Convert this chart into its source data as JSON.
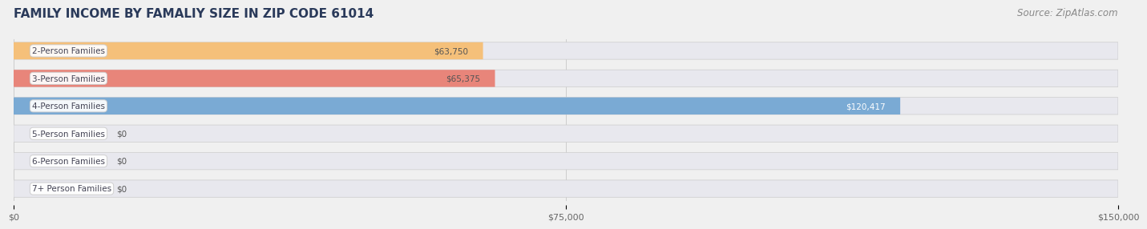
{
  "title": "FAMILY INCOME BY FAMALIY SIZE IN ZIP CODE 61014",
  "source": "Source: ZipAtlas.com",
  "categories": [
    "2-Person Families",
    "3-Person Families",
    "4-Person Families",
    "5-Person Families",
    "6-Person Families",
    "7+ Person Families"
  ],
  "values": [
    63750,
    65375,
    120417,
    0,
    0,
    0
  ],
  "bar_colors": [
    "#f5c07a",
    "#e8857a",
    "#7aaad4",
    "#c4a8d4",
    "#7accc8",
    "#b0b8e8"
  ],
  "label_colors": [
    "#555555",
    "#555555",
    "#ffffff",
    "#555555",
    "#555555",
    "#555555"
  ],
  "value_labels": [
    "$63,750",
    "$65,375",
    "$120,417",
    "$0",
    "$0",
    "$0"
  ],
  "xlim": [
    0,
    150000
  ],
  "xticks": [
    0,
    75000,
    150000
  ],
  "xticklabels": [
    "$0",
    "$75,000",
    "$150,000"
  ],
  "background_color": "#f0f0f0",
  "bar_bg_color": "#e8e8ee",
  "title_color": "#2a3a5a",
  "title_fontsize": 11,
  "source_fontsize": 8.5,
  "bar_height": 0.62,
  "label_fontsize": 7.5,
  "value_fontsize": 7.5,
  "tick_fontsize": 8
}
